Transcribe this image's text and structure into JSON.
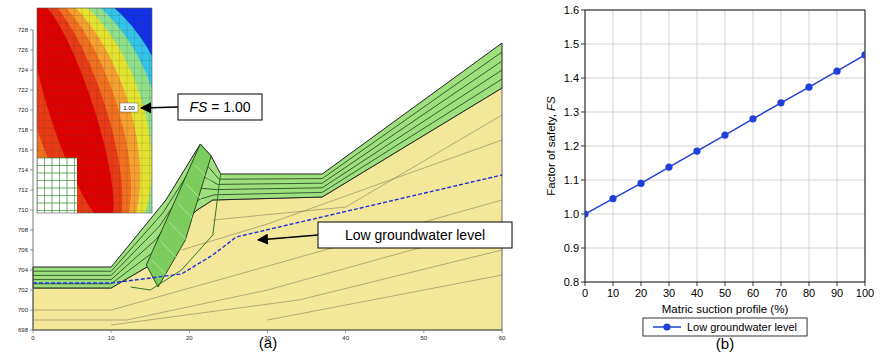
{
  "chart_data": {
    "type": "line",
    "x_label": "Matric suction profile (%)",
    "y_label": "Factor of safety, FS",
    "x": [
      0,
      10,
      20,
      30,
      40,
      50,
      60,
      70,
      80,
      90,
      100
    ],
    "series": [
      {
        "name": "Low groundwater level",
        "color": "#1f3fd8",
        "marker": "circle",
        "line_style": "solid",
        "values": [
          1.0,
          1.045,
          1.09,
          1.138,
          1.185,
          1.232,
          1.28,
          1.327,
          1.373,
          1.42,
          1.468
        ]
      }
    ],
    "xlim": [
      0,
      100
    ],
    "ylim": [
      0.8,
      1.6
    ],
    "xticks": [
      0,
      10,
      20,
      30,
      40,
      50,
      60,
      70,
      80,
      90,
      100
    ],
    "yticks": [
      0.8,
      0.9,
      {
        "value": 1,
        "label": "1.0"
      },
      1.1,
      1.2,
      1.3,
      1.4,
      1.5,
      1.6
    ],
    "grid": true,
    "legend": "bottom"
  },
  "panels": {
    "labels": [
      "(a)",
      "(b)"
    ]
  },
  "diagram": {
    "annotations": [
      "FS = 1.00",
      "Low groundwater level"
    ],
    "contour_label": "1.00",
    "xlim": [
      0,
      60
    ],
    "xticks": [
      0,
      10,
      20,
      30,
      40,
      50,
      60
    ],
    "ylim": [
      698,
      728
    ],
    "yticks": [
      698,
      700,
      702,
      704,
      706,
      708,
      710,
      712,
      714,
      716,
      718,
      720,
      722,
      724,
      726,
      728
    ]
  }
}
